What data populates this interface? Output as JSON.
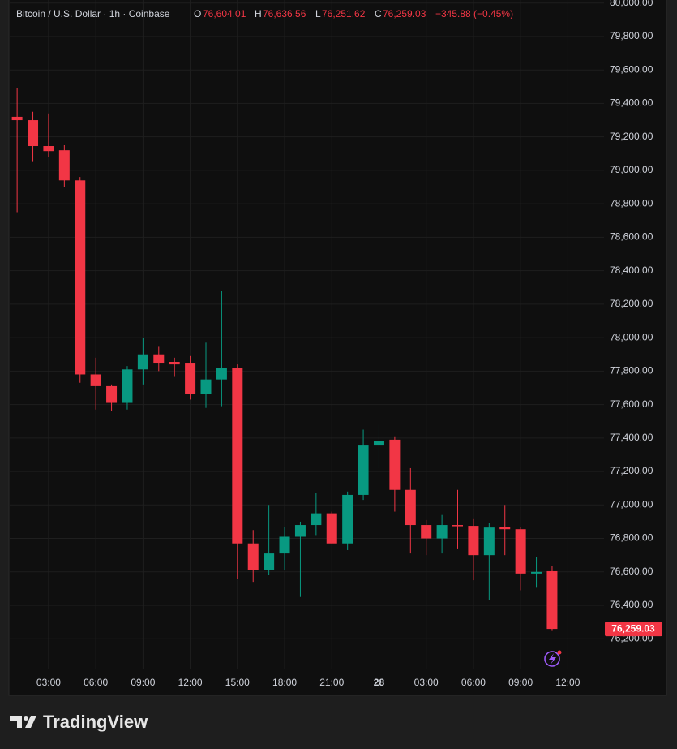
{
  "chart_data": {
    "type": "candlestick",
    "header": {
      "symbol": "Bitcoin / U.S. Dollar · 1h · Coinbase",
      "o": "O",
      "o_value": "76,604.01",
      "h": "H",
      "h_value": "76,636.56",
      "l": "L",
      "l_value": "76,251.62",
      "c": "C",
      "c_value": "76,259.03",
      "change": "−345.88 (−0.45%)"
    },
    "x": [
      1,
      2,
      3,
      4,
      5,
      6,
      7,
      8,
      9,
      10,
      11,
      12,
      13,
      14,
      15,
      16,
      17,
      18,
      19,
      20,
      21,
      22,
      23,
      24,
      25,
      26,
      27,
      28,
      29,
      30,
      31,
      32,
      33,
      34,
      35
    ],
    "open": [
      79320,
      79300,
      79145,
      79120,
      78940,
      77780,
      77710,
      77610,
      77810,
      77900,
      77855,
      77850,
      77665,
      77750,
      77820,
      76770,
      76610,
      76710,
      76810,
      76880,
      76950,
      76770,
      77060,
      77360,
      77390,
      77090,
      76880,
      76800,
      76880,
      76875,
      76700,
      76870,
      76855,
      76590,
      76604.01
    ],
    "high": [
      79490,
      79350,
      79340,
      79150,
      78960,
      77880,
      77720,
      77830,
      78000,
      77950,
      77880,
      77890,
      77970,
      78280,
      77840,
      76850,
      77000,
      76870,
      76900,
      77070,
      76960,
      77080,
      77450,
      77480,
      77410,
      77220,
      76910,
      76940,
      77090,
      76920,
      76890,
      77000,
      76870,
      76690,
      76636.56
    ],
    "low": [
      78750,
      79050,
      79080,
      78900,
      77730,
      77570,
      77560,
      77570,
      77720,
      77800,
      77770,
      77630,
      77580,
      77590,
      76560,
      76540,
      76580,
      76610,
      76450,
      76820,
      76770,
      76730,
      77030,
      77220,
      76960,
      76710,
      76700,
      76710,
      76740,
      76550,
      76430,
      76700,
      76490,
      76510,
      76251.62
    ],
    "close": [
      79300,
      79145,
      79115,
      78940,
      77780,
      77710,
      77610,
      77810,
      77900,
      77850,
      77840,
      77665,
      77750,
      77820,
      76770,
      76610,
      76710,
      76810,
      76880,
      76950,
      76770,
      77060,
      77360,
      77380,
      77090,
      76880,
      76800,
      76880,
      76875,
      76700,
      76865,
      76855,
      76590,
      76600,
      76259.03
    ],
    "up_color": "#089981",
    "down_color": "#f23645",
    "last_price_label": "76,259.03",
    "xlim": [
      0.53,
      38.3
    ],
    "xticks": [
      {
        "value": 3,
        "label": "03:00"
      },
      {
        "value": 6,
        "label": "06:00"
      },
      {
        "value": 9,
        "label": "09:00"
      },
      {
        "value": 12,
        "label": "12:00"
      },
      {
        "value": 15,
        "label": "15:00"
      },
      {
        "value": 18,
        "label": "18:00"
      },
      {
        "value": 21,
        "label": "21:00"
      },
      {
        "value": 24,
        "label": "28"
      },
      {
        "value": 27,
        "label": "03:00"
      },
      {
        "value": 30,
        "label": "06:00"
      },
      {
        "value": 33,
        "label": "09:00"
      },
      {
        "value": 36,
        "label": "12:00"
      }
    ],
    "ylim": [
      76017,
      80018
    ],
    "yticks": [
      {
        "value": 76200,
        "label": "76,200.00"
      },
      {
        "value": 76400,
        "label": "76,400.00"
      },
      {
        "value": 76600,
        "label": "76,600.00"
      },
      {
        "value": 76800,
        "label": "76,800.00"
      },
      {
        "value": 77000,
        "label": "77,000.00"
      },
      {
        "value": 77200,
        "label": "77,200.00"
      },
      {
        "value": 77400,
        "label": "77,400.00"
      },
      {
        "value": 77600,
        "label": "77,600.00"
      },
      {
        "value": 77800,
        "label": "77,800.00"
      },
      {
        "value": 78000,
        "label": "78,000.00"
      },
      {
        "value": 78200,
        "label": "78,200.00"
      },
      {
        "value": 78400,
        "label": "78,400.00"
      },
      {
        "value": 78600,
        "label": "78,600.00"
      },
      {
        "value": 78800,
        "label": "78,800.00"
      },
      {
        "value": 79000,
        "label": "79,000.00"
      },
      {
        "value": 79200,
        "label": "79,200.00"
      },
      {
        "value": 79400,
        "label": "79,400.00"
      },
      {
        "value": 79600,
        "label": "79,600.00"
      },
      {
        "value": 79800,
        "label": "79,800.00"
      },
      {
        "value": 80000,
        "label": "80,000.00"
      }
    ],
    "grid": true
  },
  "brand": "TradingView"
}
